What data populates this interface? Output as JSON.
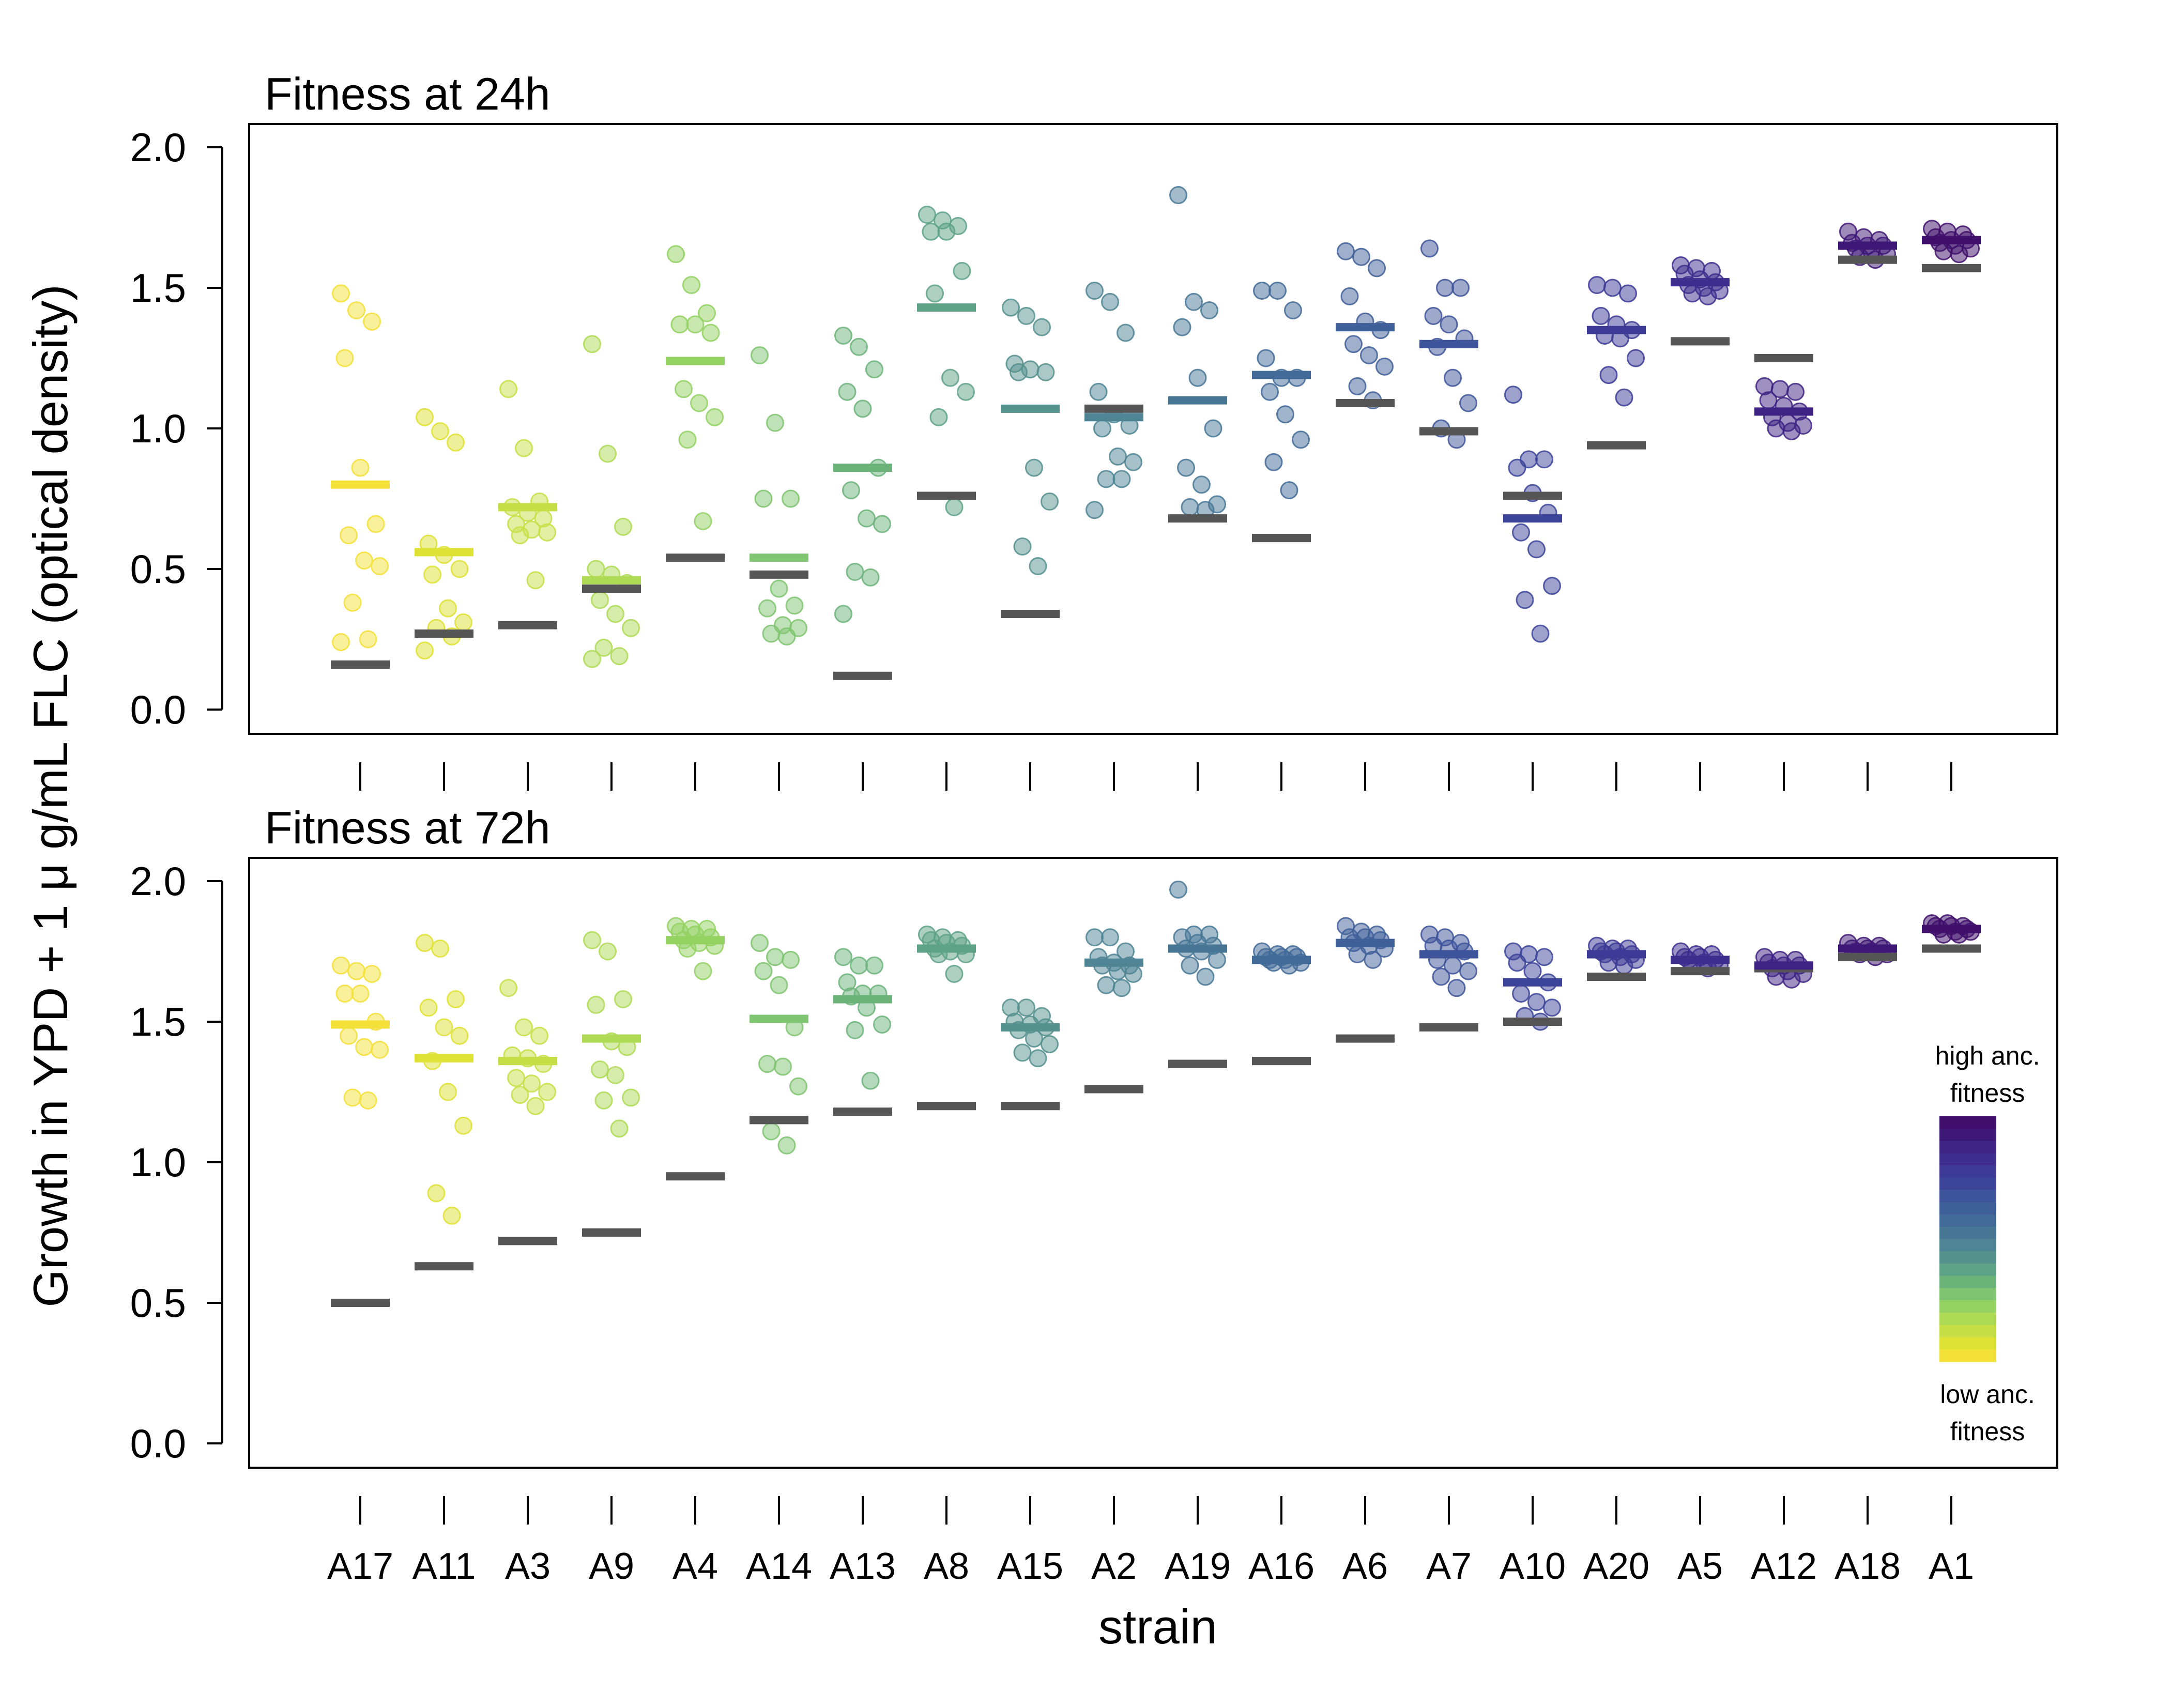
{
  "chart_data": {
    "type": "scatter",
    "xlabel": "strain",
    "ylabel": "Growth in YPD + 1 μ g/mL FLC (optical density)",
    "ylim": [
      0,
      2
    ],
    "yticks": [
      "0.0",
      "0.5",
      "1.0",
      "1.5",
      "2.0"
    ],
    "grid": false,
    "categories": [
      "A17",
      "A11",
      "A3",
      "A9",
      "A4",
      "A14",
      "A13",
      "A8",
      "A15",
      "A2",
      "A19",
      "A16",
      "A6",
      "A7",
      "A10",
      "A20",
      "A5",
      "A12",
      "A18",
      "A1"
    ],
    "colors": [
      "#F3E13A",
      "#DEE234",
      "#C7DF46",
      "#AEDA55",
      "#93D161",
      "#7FC470",
      "#6CB37A",
      "#5EA287",
      "#55918D",
      "#4E8493",
      "#487796",
      "#426A98",
      "#3F5F99",
      "#3D539A",
      "#3B4499",
      "#3C3A95",
      "#3D2E8E",
      "#3E2384",
      "#3E1876",
      "#3F0F6B"
    ],
    "ancestor_color": "#555555",
    "legend": {
      "position": "right",
      "top_label": "high anc. fitness",
      "bottom_label": "low anc. fitness"
    },
    "panels": [
      {
        "title": "Fitness at 24h",
        "ancestor_values": [
          0.16,
          0.27,
          0.3,
          0.43,
          0.54,
          0.48,
          0.12,
          0.76,
          0.34,
          1.07,
          0.68,
          0.61,
          1.09,
          0.99,
          0.76,
          0.94,
          1.31,
          1.25,
          1.6,
          1.57
        ],
        "medians": [
          0.8,
          0.56,
          0.72,
          0.46,
          1.24,
          0.54,
          0.86,
          1.43,
          1.07,
          1.04,
          1.1,
          1.19,
          1.36,
          1.3,
          0.68,
          1.35,
          1.52,
          1.06,
          1.65,
          1.67
        ],
        "points": [
          [
            1.48,
            1.42,
            1.38,
            1.25,
            0.86,
            0.66,
            0.62,
            0.53,
            0.51,
            0.38,
            0.25,
            0.24
          ],
          [
            1.04,
            0.99,
            0.95,
            0.59,
            0.55,
            0.5,
            0.48,
            0.36,
            0.31,
            0.29,
            0.26,
            0.21
          ],
          [
            1.14,
            0.93,
            0.74,
            0.72,
            0.7,
            0.68,
            0.66,
            0.64,
            0.63,
            0.62,
            0.46
          ],
          [
            1.3,
            0.91,
            0.65,
            0.5,
            0.48,
            0.45,
            0.39,
            0.34,
            0.29,
            0.22,
            0.19,
            0.18
          ],
          [
            1.62,
            1.51,
            1.41,
            1.37,
            1.37,
            1.34,
            1.14,
            1.09,
            1.04,
            0.96,
            0.67
          ],
          [
            1.26,
            1.02,
            0.75,
            0.75,
            0.43,
            0.37,
            0.36,
            0.3,
            0.29,
            0.27,
            0.26
          ],
          [
            1.33,
            1.29,
            1.21,
            1.13,
            1.07,
            0.86,
            0.78,
            0.68,
            0.66,
            0.49,
            0.47,
            0.34
          ],
          [
            1.76,
            1.74,
            1.72,
            1.7,
            1.7,
            1.56,
            1.48,
            1.18,
            1.13,
            1.04,
            0.72
          ],
          [
            1.43,
            1.4,
            1.36,
            1.23,
            1.21,
            1.2,
            1.2,
            0.86,
            0.74,
            0.58,
            0.51
          ],
          [
            1.49,
            1.45,
            1.34,
            1.13,
            1.05,
            1.01,
            1.0,
            0.9,
            0.88,
            0.82,
            0.82,
            0.71
          ],
          [
            1.83,
            1.45,
            1.42,
            1.36,
            1.18,
            1.0,
            0.86,
            0.8,
            0.73,
            0.72,
            0.71
          ],
          [
            1.49,
            1.49,
            1.42,
            1.25,
            1.18,
            1.18,
            1.13,
            1.05,
            0.96,
            0.88,
            0.78
          ],
          [
            1.63,
            1.61,
            1.57,
            1.47,
            1.38,
            1.35,
            1.3,
            1.26,
            1.22,
            1.15,
            1.1
          ],
          [
            1.64,
            1.5,
            1.5,
            1.4,
            1.37,
            1.32,
            1.29,
            1.18,
            1.09,
            1.0,
            0.96
          ],
          [
            1.12,
            0.89,
            0.89,
            0.86,
            0.77,
            0.7,
            0.63,
            0.57,
            0.44,
            0.39,
            0.27
          ],
          [
            1.51,
            1.5,
            1.48,
            1.4,
            1.37,
            1.35,
            1.33,
            1.32,
            1.25,
            1.19,
            1.11
          ],
          [
            1.58,
            1.57,
            1.56,
            1.55,
            1.53,
            1.52,
            1.51,
            1.5,
            1.49,
            1.48,
            1.47
          ],
          [
            1.15,
            1.14,
            1.13,
            1.1,
            1.08,
            1.06,
            1.04,
            1.02,
            1.01,
            1.0,
            0.99
          ],
          [
            1.7,
            1.68,
            1.67,
            1.66,
            1.65,
            1.65,
            1.64,
            1.63,
            1.62,
            1.61,
            1.6
          ],
          [
            1.71,
            1.7,
            1.69,
            1.68,
            1.67,
            1.67,
            1.66,
            1.65,
            1.64,
            1.63,
            1.62
          ]
        ]
      },
      {
        "title": "Fitness at 72h",
        "ancestor_values": [
          0.5,
          0.63,
          0.72,
          0.75,
          0.95,
          1.15,
          1.18,
          1.2,
          1.2,
          1.26,
          1.35,
          1.36,
          1.44,
          1.48,
          1.5,
          1.66,
          1.68,
          1.69,
          1.73,
          1.76
        ],
        "medians": [
          1.49,
          1.37,
          1.36,
          1.44,
          1.79,
          1.51,
          1.58,
          1.76,
          1.48,
          1.71,
          1.76,
          1.72,
          1.78,
          1.74,
          1.64,
          1.74,
          1.72,
          1.7,
          1.76,
          1.83
        ],
        "points": [
          [
            1.7,
            1.68,
            1.67,
            1.6,
            1.6,
            1.5,
            1.45,
            1.41,
            1.4,
            1.23,
            1.22
          ],
          [
            1.78,
            1.76,
            1.58,
            1.55,
            1.48,
            1.45,
            1.36,
            1.25,
            1.13,
            0.89,
            0.81
          ],
          [
            1.62,
            1.48,
            1.45,
            1.38,
            1.37,
            1.35,
            1.3,
            1.28,
            1.25,
            1.24,
            1.2
          ],
          [
            1.79,
            1.75,
            1.58,
            1.56,
            1.43,
            1.41,
            1.33,
            1.31,
            1.23,
            1.22,
            1.12
          ],
          [
            1.84,
            1.83,
            1.83,
            1.82,
            1.81,
            1.8,
            1.79,
            1.78,
            1.77,
            1.76,
            1.68
          ],
          [
            1.78,
            1.73,
            1.72,
            1.68,
            1.63,
            1.48,
            1.35,
            1.34,
            1.27,
            1.11,
            1.06
          ],
          [
            1.73,
            1.7,
            1.7,
            1.64,
            1.6,
            1.6,
            1.59,
            1.55,
            1.49,
            1.47,
            1.29
          ],
          [
            1.81,
            1.8,
            1.79,
            1.79,
            1.78,
            1.77,
            1.76,
            1.75,
            1.74,
            1.74,
            1.67
          ],
          [
            1.55,
            1.55,
            1.52,
            1.5,
            1.49,
            1.48,
            1.47,
            1.44,
            1.42,
            1.39,
            1.37
          ],
          [
            1.8,
            1.8,
            1.75,
            1.73,
            1.71,
            1.7,
            1.7,
            1.68,
            1.67,
            1.63,
            1.62
          ],
          [
            1.97,
            1.81,
            1.81,
            1.8,
            1.78,
            1.77,
            1.76,
            1.75,
            1.72,
            1.7,
            1.66
          ],
          [
            1.75,
            1.74,
            1.74,
            1.73,
            1.73,
            1.73,
            1.72,
            1.72,
            1.71,
            1.71,
            1.7
          ],
          [
            1.84,
            1.82,
            1.81,
            1.8,
            1.8,
            1.79,
            1.78,
            1.77,
            1.76,
            1.74,
            1.72
          ],
          [
            1.81,
            1.8,
            1.78,
            1.77,
            1.76,
            1.75,
            1.72,
            1.7,
            1.68,
            1.66,
            1.62
          ],
          [
            1.75,
            1.74,
            1.73,
            1.71,
            1.68,
            1.64,
            1.6,
            1.57,
            1.55,
            1.52,
            1.5
          ],
          [
            1.77,
            1.76,
            1.76,
            1.75,
            1.75,
            1.74,
            1.74,
            1.73,
            1.72,
            1.71,
            1.7
          ],
          [
            1.75,
            1.74,
            1.74,
            1.73,
            1.73,
            1.72,
            1.72,
            1.71,
            1.7,
            1.7,
            1.69
          ],
          [
            1.73,
            1.72,
            1.72,
            1.71,
            1.7,
            1.7,
            1.69,
            1.68,
            1.67,
            1.66,
            1.65
          ],
          [
            1.78,
            1.77,
            1.77,
            1.76,
            1.76,
            1.76,
            1.75,
            1.75,
            1.74,
            1.74,
            1.73
          ],
          [
            1.85,
            1.85,
            1.84,
            1.84,
            1.84,
            1.83,
            1.83,
            1.82,
            1.82,
            1.81,
            1.81
          ]
        ]
      }
    ]
  }
}
